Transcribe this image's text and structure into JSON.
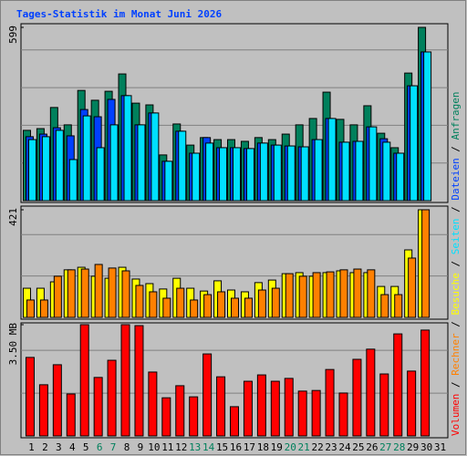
{
  "chart_data": [
    {
      "type": "bar",
      "title": "Tages-Statistik im Monat Juni 2026",
      "ylim": [
        0,
        599
      ],
      "yticks": [
        599
      ],
      "series": [
        {
          "name": "Anfragen",
          "color": "#00805c",
          "values": [
            243,
            249,
            322,
            262,
            381,
            347,
            378,
            438,
            337,
            331,
            158,
            265,
            192,
            218,
            211,
            211,
            205,
            218,
            211,
            230,
            262,
            284,
            375,
            281,
            262,
            328,
            233,
            183,
            441,
            599,
            null
          ]
        },
        {
          "name": "Dateien",
          "color": "#0040ff",
          "values": [
            221,
            230,
            252,
            224,
            315,
            290,
            350,
            363,
            262,
            303,
            136,
            240,
            164,
            218,
            183,
            183,
            180,
            199,
            192,
            189,
            186,
            211,
            284,
            202,
            205,
            255,
            214,
            164,
            397,
            514,
            null
          ]
        },
        {
          "name": "Seiten",
          "color": "#00e0ff",
          "values": [
            211,
            221,
            243,
            142,
            293,
            183,
            262,
            363,
            262,
            303,
            136,
            240,
            164,
            199,
            183,
            183,
            180,
            199,
            192,
            189,
            186,
            211,
            284,
            202,
            205,
            255,
            202,
            164,
            397,
            514,
            null
          ]
        }
      ]
    },
    {
      "type": "bar",
      "ylim": [
        0,
        421
      ],
      "yticks": [
        421
      ],
      "series": [
        {
          "name": "Besuche",
          "color": "#ffff00",
          "values": [
            114,
            114,
            139,
            186,
            196,
            161,
            153,
            196,
            150,
            132,
            111,
            153,
            114,
            103,
            143,
            107,
            100,
            136,
            146,
            171,
            175,
            161,
            175,
            182,
            175,
            175,
            121,
            121,
            264,
            421,
            null
          ]
        },
        {
          "name": "Rechner",
          "color": "#ff8000",
          "values": [
            68,
            68,
            161,
            186,
            189,
            207,
            193,
            182,
            125,
            100,
            75,
            114,
            68,
            89,
            100,
            75,
            75,
            107,
            114,
            171,
            161,
            175,
            178,
            186,
            189,
            186,
            89,
            89,
            232,
            421,
            null
          ]
        }
      ]
    },
    {
      "type": "bar",
      "ylim": [
        0,
        3.5
      ],
      "yticks": [
        {
          "value": 3.5,
          "label": "3.50 MB"
        }
      ],
      "categories": [
        "1",
        "2",
        "3",
        "4",
        "5",
        "6",
        "7",
        "8",
        "9",
        "10",
        "11",
        "12",
        "13",
        "14",
        "15",
        "16",
        "17",
        "18",
        "19",
        "20",
        "21",
        "22",
        "23",
        "24",
        "25",
        "26",
        "27",
        "28",
        "29",
        "30",
        "31"
      ],
      "category_colors": [
        "#000000",
        "#000000",
        "#000000",
        "#000000",
        "#000000",
        "#00805c",
        "#00805c",
        "#000000",
        "#000000",
        "#000000",
        "#000000",
        "#000000",
        "#00805c",
        "#00805c",
        "#000000",
        "#000000",
        "#000000",
        "#000000",
        "#000000",
        "#00805c",
        "#00805c",
        "#000000",
        "#000000",
        "#000000",
        "#000000",
        "#000000",
        "#00805c",
        "#00805c",
        "#000000",
        "#000000",
        "#000000"
      ],
      "legend_separator": " / ",
      "series": [
        {
          "name": "Volumen",
          "color": "#ff0000",
          "values": [
            2.47,
            1.61,
            2.24,
            1.32,
            3.5,
            1.84,
            2.38,
            3.5,
            3.47,
            2.01,
            1.2,
            1.58,
            1.23,
            2.58,
            1.86,
            0.92,
            1.72,
            1.92,
            1.72,
            1.81,
            1.41,
            1.43,
            2.09,
            1.35,
            2.41,
            2.73,
            1.95,
            3.21,
            2.04,
            3.33,
            null
          ]
        }
      ]
    }
  ]
}
